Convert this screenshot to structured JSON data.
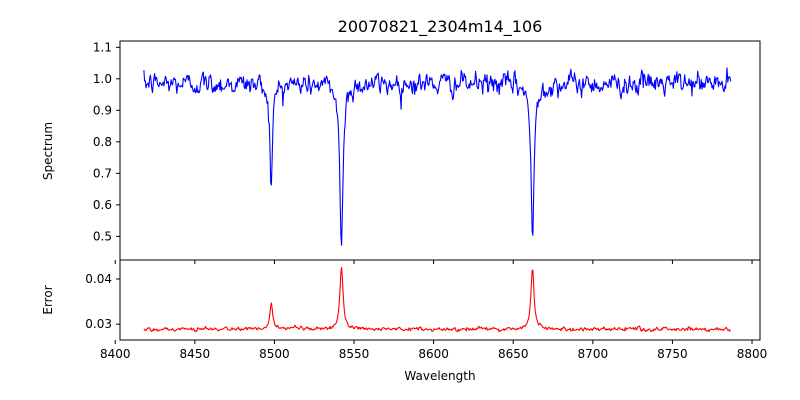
{
  "chart_data": {
    "title": "20070821_2304m14_106",
    "xlabel": "Wavelength",
    "x_ticks": [
      "8400",
      "8450",
      "8500",
      "8550",
      "8600",
      "8650",
      "8700",
      "8750",
      "8800"
    ],
    "panels": [
      {
        "type": "line",
        "ylabel": "Spectrum",
        "xlim": [
          8403,
          8805
        ],
        "ylim": [
          0.425,
          1.12
        ],
        "y_ticks": [
          "0.5",
          "0.6",
          "0.7",
          "0.8",
          "0.9",
          "1.0",
          "1.1"
        ],
        "series": [
          {
            "color": "#0000ff",
            "x_range": [
              8418,
              8787
            ],
            "continuum": 0.985,
            "noise": 0.028,
            "features": [
              {
                "center": 8498.0,
                "depth": 0.34,
                "width": 0.95
              },
              {
                "center": 8542.1,
                "depth": 0.52,
                "width": 1.2
              },
              {
                "center": 8662.1,
                "depth": 0.51,
                "width": 1.15
              }
            ]
          }
        ]
      },
      {
        "type": "line",
        "ylabel": "Error",
        "xlim": [
          8403,
          8805
        ],
        "ylim": [
          0.0265,
          0.0442
        ],
        "y_ticks": [
          "0.03",
          "0.04"
        ],
        "series": [
          {
            "color": "#ff0000",
            "x_range": [
              8418,
              8787
            ],
            "continuum": 0.0289,
            "noise": 0.00035,
            "features": [
              {
                "center": 8498.0,
                "depth": -0.0058,
                "width": 1.0
              },
              {
                "center": 8542.1,
                "depth": -0.0135,
                "width": 1.2
              },
              {
                "center": 8662.1,
                "depth": -0.0135,
                "width": 1.15
              }
            ]
          }
        ]
      }
    ]
  }
}
